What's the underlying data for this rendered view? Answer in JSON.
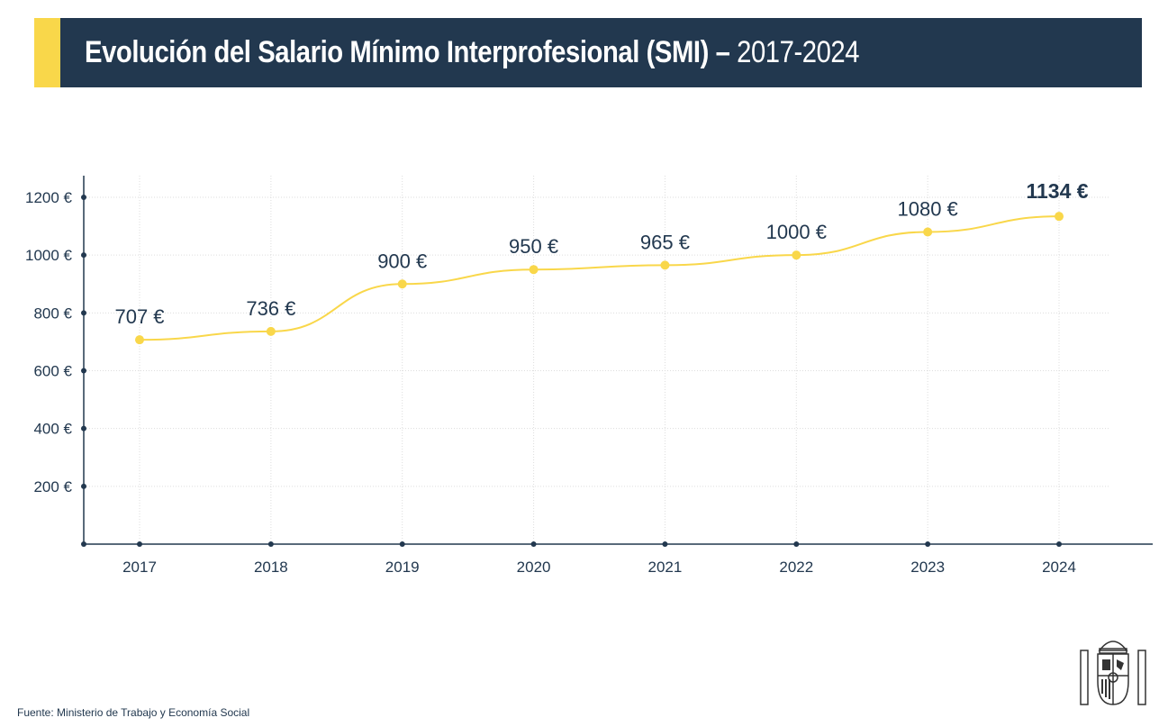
{
  "header": {
    "title_main": "Evolución del Salario Mínimo Interprofesional (SMI) –",
    "title_period": "2017-2024"
  },
  "colors": {
    "accent": "#f9d74a",
    "header_bg": "#22384f",
    "line": "#f9d74a",
    "text": "#22384f"
  },
  "chart_data": {
    "type": "line",
    "title": "",
    "xlabel": "",
    "ylabel": "",
    "categories": [
      "2017",
      "2018",
      "2019",
      "2020",
      "2021",
      "2022",
      "2023",
      "2024"
    ],
    "values": [
      707,
      736,
      900,
      950,
      965,
      1000,
      1080,
      1134
    ],
    "data_labels": [
      "707 €",
      "736 €",
      "900 €",
      "950 €",
      "965 €",
      "1000 €",
      "1080 €",
      "1134 €"
    ],
    "highlight_last": true,
    "ylim": [
      0,
      1270
    ],
    "yticks": [
      200,
      400,
      600,
      800,
      1000,
      1200
    ],
    "ytick_labels": [
      "200 €",
      "400 €",
      "600 €",
      "800 €",
      "1000 €",
      "1200 €"
    ],
    "grid": true,
    "smooth": true
  },
  "footer": {
    "source": "Fuente: Ministerio de Trabajo y Economía Social",
    "logo": "Escudo de España"
  }
}
